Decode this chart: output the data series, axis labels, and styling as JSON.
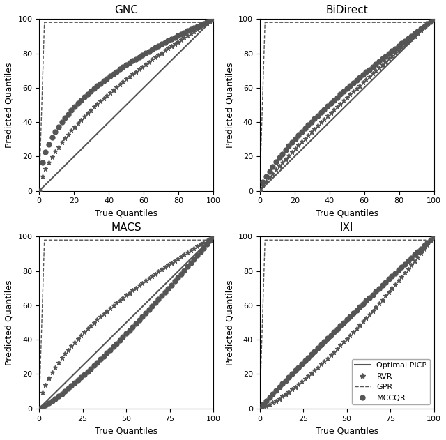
{
  "titles": [
    "GNC",
    "BiDirect",
    "MACS",
    "IXI"
  ],
  "xlabel": "True Quantiles",
  "ylabel": "Predicted Quantiles",
  "color": "#555555",
  "xlim": [
    0,
    100
  ],
  "ylim": [
    0,
    100
  ],
  "yticks": [
    0,
    20,
    40,
    60,
    80,
    100
  ],
  "xticks_top": [
    0,
    20,
    40,
    60,
    80,
    100
  ],
  "xticks_bottom": [
    0,
    25,
    50,
    75,
    100
  ],
  "legend_labels": [
    "Optimal PICP",
    "RVR",
    "GPR",
    "MCCQR"
  ],
  "curves": {
    "GNC": {
      "mccqr_power": 0.45,
      "rvr_power": 0.62,
      "gpr_sat_x": 3.0,
      "gpr_sat_y": 98.0
    },
    "BiDirect": {
      "mccqr_power": 0.75,
      "rvr_power": 0.88,
      "gpr_sat_x": 3.0,
      "gpr_sat_y": 98.0
    },
    "MACS": {
      "mccqr_power": 1.2,
      "rvr_power": 0.6,
      "gpr_sat_x": 3.0,
      "gpr_sat_y": 98.0
    },
    "IXI": {
      "mccqr_power": 0.95,
      "rvr_power": 1.3,
      "gpr_sat_x": 3.0,
      "gpr_sat_y": 98.0
    }
  }
}
